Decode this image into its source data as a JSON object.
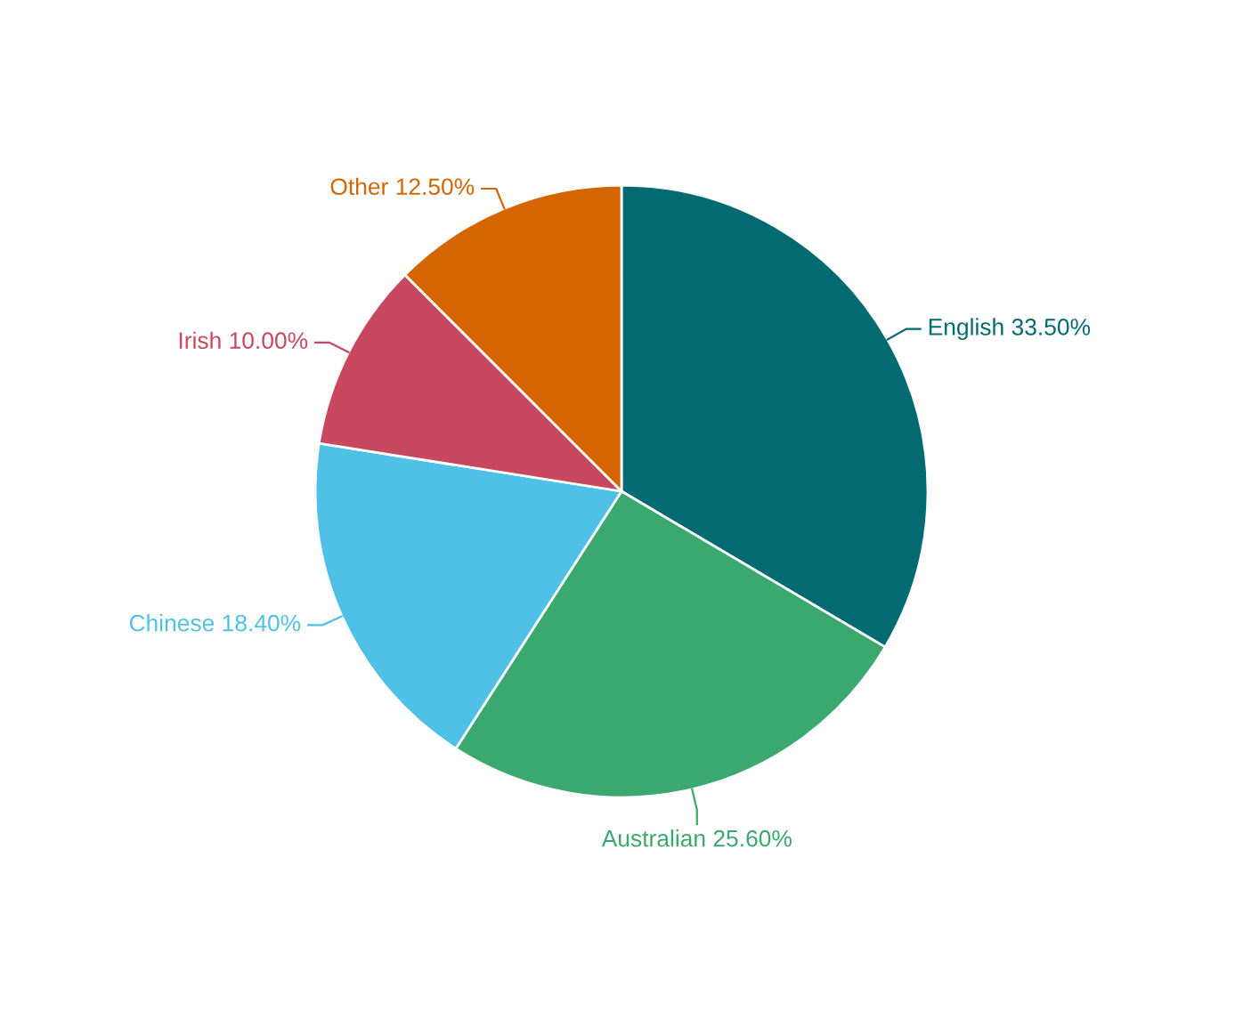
{
  "chart_data": {
    "type": "pie",
    "categories": [
      "English",
      "Australian",
      "Chinese",
      "Irish",
      "Other"
    ],
    "values": [
      33.5,
      25.6,
      18.4,
      10.0,
      12.5
    ],
    "value_labels": [
      "33.50%",
      "25.60%",
      "18.40%",
      "10.00%",
      "12.50%"
    ],
    "colors": [
      "#046a72",
      "#3aa86f",
      "#50c1e6",
      "#c8495f",
      "#d46500"
    ]
  }
}
